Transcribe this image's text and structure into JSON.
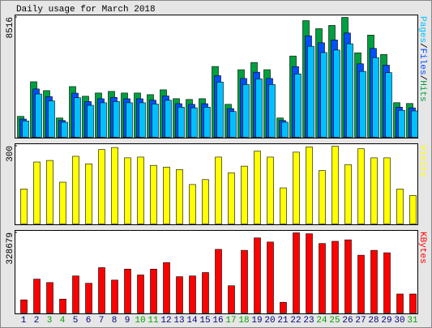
{
  "chart_data": [
    {
      "type": "bar",
      "title": "Daily usage for March 2018",
      "categories": [
        "1",
        "2",
        "3",
        "4",
        "5",
        "6",
        "7",
        "8",
        "9",
        "10",
        "11",
        "12",
        "13",
        "14",
        "15",
        "16",
        "17",
        "18",
        "19",
        "20",
        "21",
        "22",
        "23",
        "24",
        "25",
        "26",
        "27",
        "28",
        "29",
        "30",
        "31"
      ],
      "category_colors": [
        "#000080",
        "#000080",
        "#00a000",
        "#00a000",
        "#000080",
        "#000080",
        "#000080",
        "#000080",
        "#000080",
        "#00a000",
        "#00a000",
        "#000080",
        "#000080",
        "#000080",
        "#000080",
        "#000080",
        "#00a000",
        "#00a000",
        "#000080",
        "#000080",
        "#000080",
        "#000080",
        "#000080",
        "#00a000",
        "#00a000",
        "#000080",
        "#000080",
        "#000080",
        "#000080",
        "#000080",
        "#00a000"
      ],
      "legend_separator": "/",
      "ylim": [
        0,
        8516
      ],
      "yticks": [
        8516
      ],
      "series": [
        {
          "name": "Hits",
          "color": "#00a040",
          "values": [
            1486,
            3944,
            3315,
            1372,
            3601,
            2915,
            3144,
            3258,
            3144,
            3144,
            3029,
            3372,
            2743,
            2686,
            2743,
            5030,
            2343,
            4801,
            5315,
            4801,
            1372,
            5773,
            8287,
            7716,
            7945,
            8516,
            6001,
            7259,
            5887,
            2458,
            2400
          ]
        },
        {
          "name": "Files",
          "color": "#0050ff",
          "values": [
            1293,
            3431,
            2884,
            1194,
            3133,
            2536,
            2735,
            2834,
            2735,
            2735,
            2635,
            2934,
            2386,
            2337,
            2386,
            4376,
            2038,
            4177,
            4624,
            4177,
            1194,
            5023,
            7210,
            6713,
            6912,
            7409,
            5221,
            6315,
            5122,
            2138,
            2088
          ]
        },
        {
          "name": "Pages",
          "color": "#00c0ff",
          "values": [
            1159,
            3076,
            2586,
            1070,
            2809,
            2274,
            2452,
            2541,
            2452,
            2452,
            2363,
            2630,
            2140,
            2095,
            2140,
            3923,
            1828,
            3745,
            4146,
            3745,
            1070,
            4503,
            6464,
            6018,
            6197,
            6642,
            4681,
            5662,
            4592,
            1917,
            1872
          ]
        }
      ]
    },
    {
      "type": "bar",
      "ylim": [
        0,
        300
      ],
      "yticks": [
        300
      ],
      "series": [
        {
          "name": "Visits",
          "color": "#ffff00",
          "values": [
            135,
            239,
            245,
            161,
            261,
            232,
            287,
            295,
            255,
            258,
            226,
            219,
            210,
            152,
            171,
            258,
            197,
            223,
            281,
            258,
            139,
            277,
            297,
            206,
            300,
            229,
            290,
            255,
            255,
            135,
            110
          ]
        }
      ]
    },
    {
      "type": "bar",
      "ylim": [
        0,
        328679
      ],
      "yticks": [
        328679
      ],
      "series": [
        {
          "name": "KBytes",
          "color": "#ff0000",
          "values": [
            54000,
            139000,
            125000,
            57000,
            152000,
            122000,
            186000,
            135000,
            180000,
            156000,
            180000,
            207000,
            149000,
            152000,
            166000,
            261000,
            112000,
            257000,
            308000,
            291000,
            44000,
            328679,
            325000,
            285000,
            294000,
            300000,
            237000,
            257000,
            247000,
            78000,
            78000
          ]
        }
      ]
    }
  ]
}
